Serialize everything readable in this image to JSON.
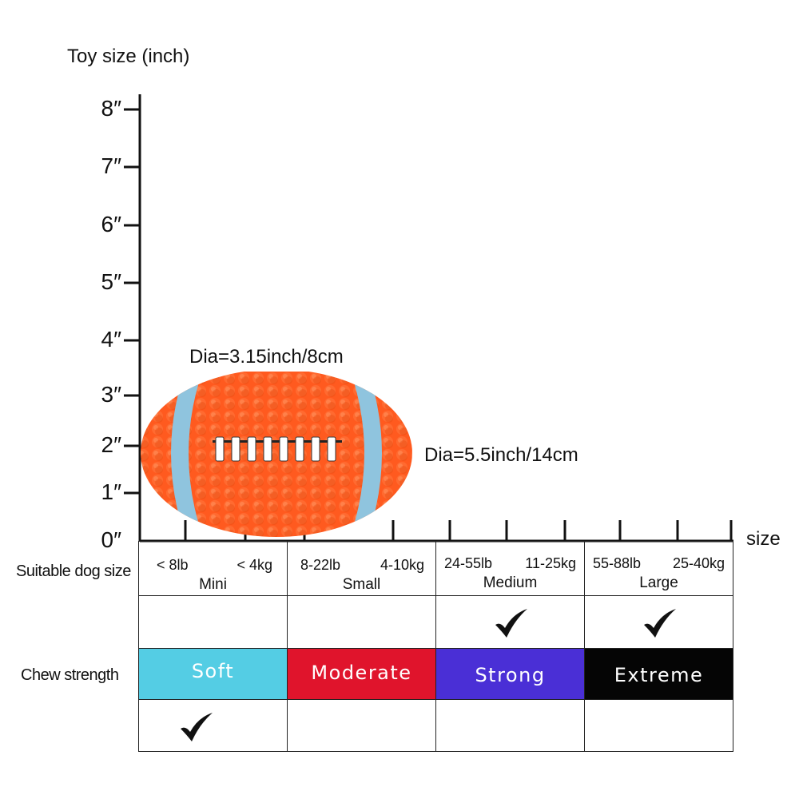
{
  "axis": {
    "y_title": "Toy size  (inch)",
    "x_title": "size",
    "ticks": [
      "8″",
      "7″",
      "6″",
      "5″",
      "4″",
      "3″",
      "2″",
      "1″",
      "0″"
    ]
  },
  "product": {
    "dim_top": "Dia=3.15inch/8cm",
    "dim_side": "Dia=5.5inch/14cm",
    "colors": {
      "body": "#ff5a1f",
      "stripe": "#8fc4de",
      "lace": "#ffffff"
    }
  },
  "rows": {
    "dog_size_label": "Suitable dog size",
    "chew_label": "Chew strength"
  },
  "sizes": [
    {
      "lb": "< 8lb",
      "kg": "< 4kg",
      "name": "Mini",
      "suitable": false
    },
    {
      "lb": "8-22lb",
      "kg": "4-10kg",
      "name": "Small",
      "suitable": false
    },
    {
      "lb": "24-55lb",
      "kg": "11-25kg",
      "name": "Medium",
      "suitable": true
    },
    {
      "lb": "55-88lb",
      "kg": "25-40kg",
      "name": "Large",
      "suitable": true
    }
  ],
  "strengths": [
    {
      "name": "Soft",
      "color": "#54cde4",
      "text_color": "#ffffff",
      "suitable": true
    },
    {
      "name": "Moderate",
      "color": "#e0142c",
      "text_color": "#ffffff",
      "suitable": false
    },
    {
      "name": "Strong",
      "color": "#4a2fd6",
      "text_color": "#ffffff",
      "suitable": false
    },
    {
      "name": "Extreme",
      "color": "#050505",
      "text_color": "#ffffff",
      "suitable": false
    }
  ]
}
